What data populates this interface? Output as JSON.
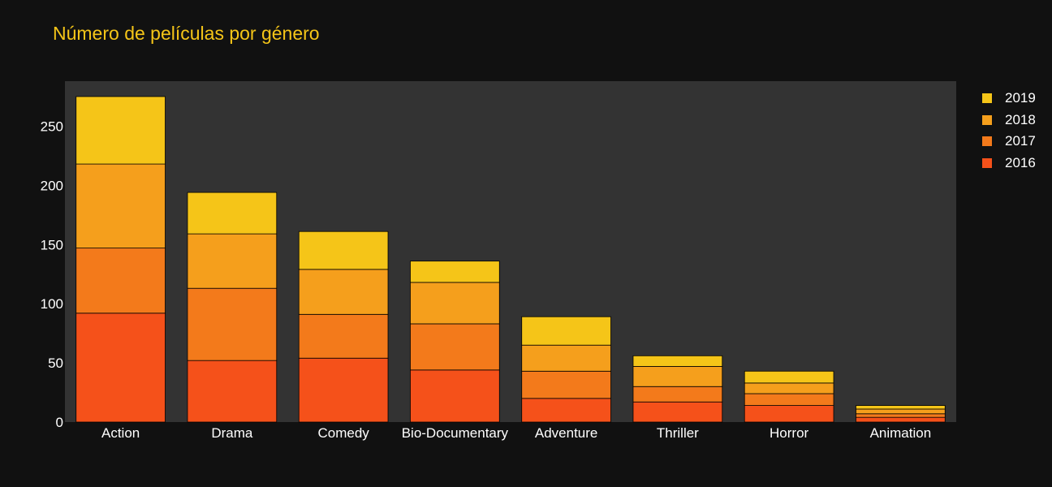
{
  "chart_data": {
    "type": "bar",
    "barmode": "stack",
    "title": "Número de películas por género",
    "categories": [
      "Action",
      "Drama",
      "Comedy",
      "Bio-Documentary",
      "Adventure",
      "Thriller",
      "Horror",
      "Animation"
    ],
    "series": [
      {
        "name": "2016",
        "color": "#f5511a",
        "values": [
          92,
          52,
          54,
          44,
          20,
          17,
          14,
          4
        ]
      },
      {
        "name": "2017",
        "color": "#f37a1b",
        "values": [
          55,
          61,
          37,
          39,
          23,
          13,
          10,
          3
        ]
      },
      {
        "name": "2018",
        "color": "#f59f1c",
        "values": [
          71,
          46,
          38,
          35,
          22,
          17,
          9,
          4
        ]
      },
      {
        "name": "2019",
        "color": "#f5c518",
        "values": [
          57,
          35,
          32,
          18,
          24,
          9,
          10,
          3
        ]
      }
    ],
    "ylim": [
      0,
      288
    ],
    "yticks": [
      0,
      50,
      100,
      150,
      200,
      250
    ],
    "grid": false,
    "legend": "top-right, outside plot",
    "colors": {
      "background": "#111111",
      "plot_area": "#333333",
      "title": "#f5c518",
      "text": "#ffffff",
      "bar_outline": "#000000"
    }
  }
}
